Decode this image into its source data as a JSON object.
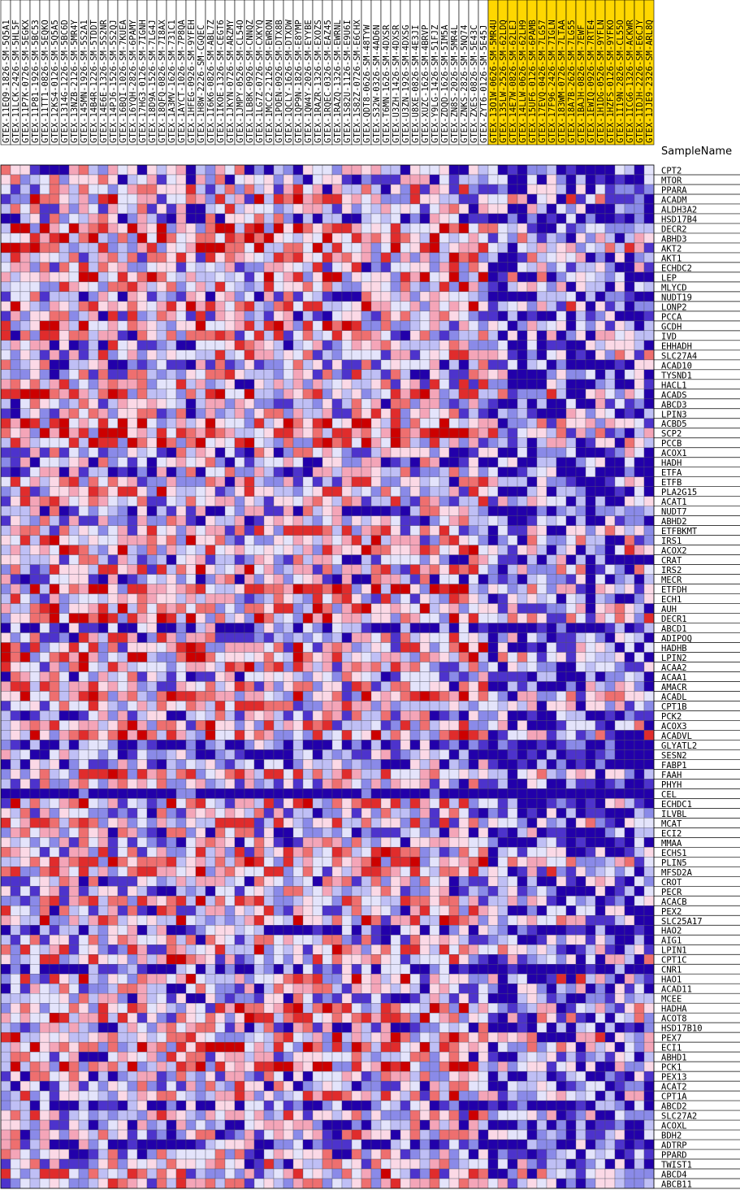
{
  "chart_data": {
    "type": "heatmap",
    "title": "",
    "column_axis_label": "SampleName",
    "columns": [
      "GTEX-11EQ9-1826-SM-5Q5A1",
      "GTEX-11LCK-2426-SM-5HL5F",
      "GTEX-11P7K-0726-SM-5EGKX",
      "GTEX-11P81-1926-SM-5BC53",
      "GTEX-11TT1-0826-SM-5EQKO",
      "GTEX-12KS4-0126-SM-5Q5A5",
      "GTEX-1314G-1226-SM-5BC6D",
      "GTEX-13NZB-2126-SM-5MR4Y",
      "GTEX-145MN-1926-SM-5S2A1",
      "GTEX-14B4R-1226-SM-5TDDT",
      "GTEX-14E6E-1326-SM-5S2NR",
      "GTEX-14PJ6-1526-SM-5S2QJ",
      "GTEX-16BQI-1026-SM-7KUEA",
      "GTEX-16YQH-2826-SM-6PAMY",
      "GTEX-17HG3-0126-SM-7IGNH",
      "GTEX-18D9A-1526-SM-7LG4J",
      "GTEX-18QFQ-0826-SM-7I8AX",
      "GTEX-1A3MV-1626-SM-731C1",
      "GTEX-1AYCT-1026-SM-7P8QA",
      "GTEX-1HFEG-0926-SM-9YFEH",
      "GTEX-1H8W-2226-SM-CGQEC",
      "GTEX-1I6K6-0826-SM-ABL7Z",
      "GTEX-1IKOE-1326-SM-CEGT6",
      "GTEX-1JKYN-0726-SM-ARZMY",
      "GTEX-1JMPY-0526-SM-CL54O",
      "GTEX-1LB8K-0926-SM-CNNQZ",
      "GTEX-1LG7Z-0726-SM-CXKYQ",
      "GTEX-1MCC2-2126-SM-EWRON",
      "GTEX-1POEN-0926-SM-DTX8B",
      "GTEX-1QCLY-1626-SM-DTXDW",
      "GTEX-1QP9N-1826-SM-E8YMP",
      "GTEX-1QW4Y-2026-SM-EYYBE",
      "GTEX-1RAZR-1326-SM-EXOZS",
      "GTEX-1RQEC-0326-SM-EAZ45",
      "GTEX-1RAZQ-1326-SM-EWRNL",
      "GTEX-1S82U-1126-SM-E9U6I",
      "GTEX-1S82Z-0726-SM-E6CHX",
      "GTEX-QDT8-0626-SM-48TYW",
      "GTEX-S32W-0326-SM-4AD6N",
      "GTEX-T6MN-1626-SM-4DXSR",
      "GTEX-U3ZH-1426-SM-4DXSR",
      "GTEX-U3ZN-1926-SM-4DXSG",
      "GTEX-U8XE-0826-SM-4E3JI",
      "GTEX-XUZC-1626-SM-4BRVP",
      "GTEX-Y9LG-1426-SM-51FJZ",
      "GTEX-ZDQD-1626-SM-5IM5A",
      "GTEX-ZN8S-2026-SM-5MR4L",
      "GTEX-ZNKS-2826-SM-5NQ74",
      "GTEX-ZXES-0826-SM-5E43C",
      "GTEX-ZYT6-0126-SM-5E45J",
      "GTEX-13O1W-0626-SM-5MR4U",
      "GTEX-135LW-2526-SM-62LDQ",
      "GTEX-14E7W-0826-SM-62LEJ",
      "GTEX-14LLW-0626-SM-62LH9",
      "GTEX-15UF6-0126-SM-6PAMB",
      "GTEX-17EVQ-0426-SM-7LG57",
      "GTEX-17F96-2426-SM-7IGLN",
      "GTEX-183WM-0726-SM-7LTAA",
      "GTEX-18A7B-2626-SM-7LG55",
      "GTEX-1BAJH-0826-SM-7EWF",
      "GTEX-1EWIQ-0926-SM-7RTE4",
      "GTEX-1H1DG-0526-SM-9YFLN",
      "GTEX-1HZFS-0126-SM-9YFKO",
      "GTEX-1I19N-2826-SM-CL55O",
      "GTEX-1ICG6-1326-SM-ACKWR",
      "GTEX-1IDJH-2226-SM-E6CJY",
      "GTEX-1JJE9-2326-SM-ARL8Q"
    ],
    "highlighted_columns_from_index": 50,
    "highlight_color": "#ffd700",
    "rows": [
      "CPT2",
      "MTOR",
      "PPARA",
      "ACADM",
      "ALDH3A2",
      "HSD17B4",
      "DECR2",
      "ABHD3",
      "AKT2",
      "AKT1",
      "ECHDC2",
      "LEP",
      "MLYCD",
      "NUDT19",
      "LONP2",
      "PCCA",
      "GCDH",
      "IVD",
      "EHHADH",
      "SLC27A4",
      "ACAD10",
      "TYSND1",
      "HACL1",
      "ACADS",
      "ABCD3",
      "LPIN3",
      "ACBD5",
      "SCP2",
      "PCCB",
      "ACOX1",
      "HADH",
      "ETFA",
      "ETFB",
      "PLA2G15",
      "ACAT1",
      "NUDT7",
      "ABHD2",
      "ETFBKMT",
      "IRS1",
      "ACOX2",
      "CRAT",
      "IRS2",
      "MECR",
      "ETFDH",
      "ECH1",
      "AUH",
      "DECR1",
      "ABCD1",
      "ADIPOQ",
      "HADHB",
      "LPIN2",
      "ACAA2",
      "ACAA1",
      "AMACR",
      "ACADL",
      "CPT1B",
      "PCK2",
      "ACOX3",
      "ACADVL",
      "GLYATL2",
      "SESN2",
      "FABP1",
      "FAAH",
      "PHYH",
      "CEL",
      "ECHDC1",
      "ILVBL",
      "MCAT",
      "ECI2",
      "MMAA",
      "ECHS1",
      "PLIN5",
      "MFSD2A",
      "CROT",
      "PECR",
      "ACACB",
      "PEX2",
      "SLC25A17",
      "HAO2",
      "AIG1",
      "LPIN1",
      "CPT1C",
      "CNR1",
      "HAO1",
      "ACAD11",
      "MCEE",
      "HADHA",
      "ACOT8",
      "HSD17B10",
      "PEX7",
      "ECI1",
      "ABHD1",
      "PCK1",
      "PEX13",
      "ACAT2",
      "CPT1A",
      "ABCD2",
      "SLC27A2",
      "ACOXL",
      "BDH2",
      "ADTRP",
      "PPARD",
      "TWIST1",
      "ABCD4",
      "ABCB11"
    ],
    "colormap": [
      "#2200aa",
      "#4d33cc",
      "#8a8ae8",
      "#bfbff5",
      "#e4e4fb",
      "#fbd9e6",
      "#f4a5b8",
      "#ee6f6f",
      "#e02c2c",
      "#cc0000"
    ],
    "value_range": [
      -4,
      5
    ],
    "values_encoding": "per-cell color level 0 (deep blue) to 9 (deep red); full matrix generated by seeded estimate per row/column pattern",
    "seed": 911,
    "low_group_bias": -2,
    "grid": true
  }
}
